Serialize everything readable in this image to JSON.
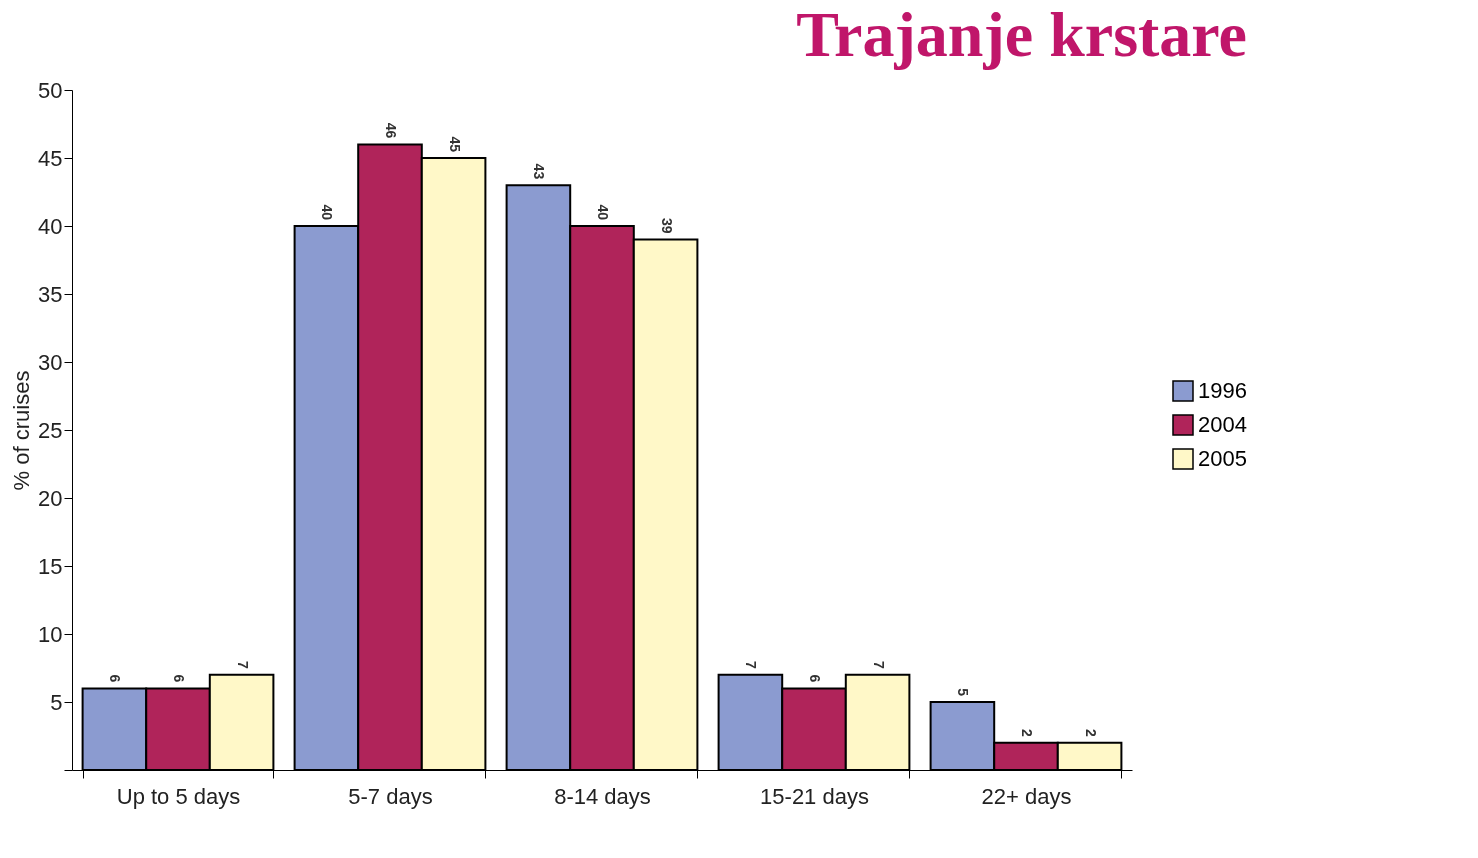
{
  "chart_data": {
    "type": "bar",
    "title": "Trajanje krstare",
    "ylabel": "% of cruises",
    "categories": [
      "Up to 5 days",
      "5-7 days",
      "8-14 days",
      "15-21 days",
      "22+ days"
    ],
    "series": [
      {
        "name": "1996",
        "color": "#8b9bd0",
        "values": [
          6,
          40,
          43,
          7,
          5
        ]
      },
      {
        "name": "2004",
        "color": "#b0245a",
        "values": [
          6,
          46,
          40,
          6,
          2
        ]
      },
      {
        "name": "2005",
        "color": "#fff8c8",
        "values": [
          7,
          45,
          39,
          7,
          2
        ]
      }
    ],
    "ylim": [
      0,
      50
    ],
    "yticks": [
      {
        "value": 0,
        "label": null
      },
      5,
      10,
      15,
      20,
      25,
      30,
      35,
      40,
      45,
      50
    ],
    "grid": false,
    "legend": "right",
    "data_labels": true
  }
}
